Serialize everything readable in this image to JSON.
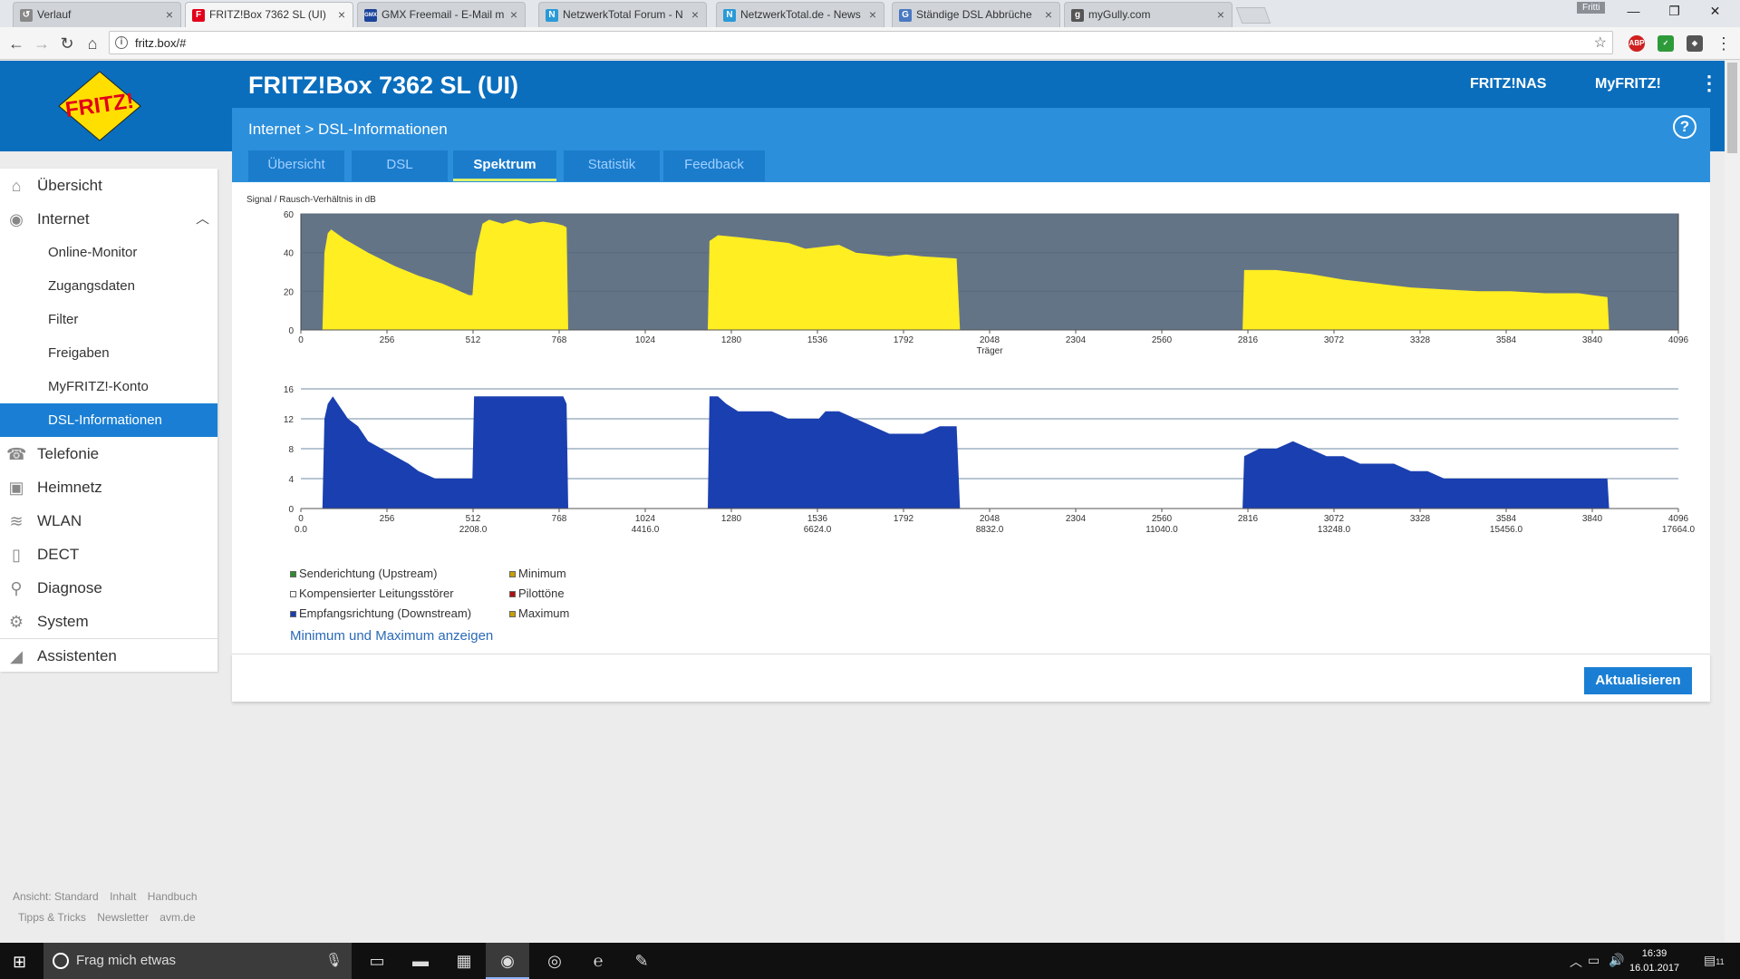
{
  "browser": {
    "tabs": [
      {
        "title": "Verlauf",
        "favicon": "history-icon",
        "color": "#888"
      },
      {
        "title": "FRITZ!Box 7362 SL (UI)",
        "favicon": "fritz-icon",
        "color": "#e2001a"
      },
      {
        "title": "GMX Freemail - E-Mail m",
        "favicon": "gmx-icon",
        "color": "#1c449b"
      },
      {
        "title": "NetzwerkTotal Forum - N",
        "favicon": "nt-icon",
        "color": "#2a9ad7"
      },
      {
        "title": "NetzwerkTotal.de - News",
        "favicon": "nt-icon",
        "color": "#2a9ad7"
      },
      {
        "title": "Ständige DSL Abbrüche",
        "favicon": "g-icon",
        "color": "#4a78c2"
      },
      {
        "title": "myGully.com",
        "favicon": "gully-icon",
        "color": "#555"
      }
    ],
    "url": "fritz.box/#",
    "user": "Fritti"
  },
  "header": {
    "title": "FRITZ!Box 7362 SL (UI)",
    "links": [
      "FRITZ!NAS",
      "MyFRITZ!"
    ]
  },
  "breadcrumb": "Internet > DSL-Informationen",
  "tabs": [
    {
      "label": "Übersicht",
      "active": false
    },
    {
      "label": "DSL",
      "active": false
    },
    {
      "label": "Spektrum",
      "active": true
    },
    {
      "label": "Statistik",
      "active": false
    },
    {
      "label": "Feedback",
      "active": false
    }
  ],
  "sidebar": {
    "items": [
      {
        "label": "Übersicht",
        "icon": "home-icon"
      },
      {
        "label": "Internet",
        "icon": "globe-icon"
      },
      {
        "label": "Telefonie",
        "icon": "phone-icon"
      },
      {
        "label": "Heimnetz",
        "icon": "network-icon"
      },
      {
        "label": "WLAN",
        "icon": "wifi-icon"
      },
      {
        "label": "DECT",
        "icon": "dect-icon"
      },
      {
        "label": "Diagnose",
        "icon": "diagnose-icon"
      },
      {
        "label": "System",
        "icon": "system-icon"
      },
      {
        "label": "Assistenten",
        "icon": "wizard-icon"
      }
    ],
    "subitems": [
      "Online-Monitor",
      "Zugangsdaten",
      "Filter",
      "Freigaben",
      "MyFRITZ!-Konto",
      "DSL-Informationen"
    ]
  },
  "footer_links": {
    "row1": [
      "Ansicht: Standard",
      "Inhalt",
      "Handbuch"
    ],
    "row2": [
      "Tipps & Tricks",
      "Newsletter",
      "avm.de"
    ]
  },
  "legend": {
    "items": [
      {
        "label": "Senderichtung (Upstream)",
        "color": "#2e8b2e"
      },
      {
        "label": "Minimum",
        "color": "#c8a000"
      },
      {
        "label": "Kompensierter Leitungsstörer",
        "color": "#ffffff"
      },
      {
        "label": "Pilottöne",
        "color": "#b01010"
      },
      {
        "label": "Empfangsrichtung (Downstream)",
        "color": "#1a3fb0"
      },
      {
        "label": "Maximum",
        "color": "#c8a000"
      }
    ],
    "toggle_link": "Minimum und Maximum anzeigen"
  },
  "refresh_button": "Aktualisieren",
  "taskbar": {
    "search_placeholder": "Frag mich etwas",
    "time": "16:39",
    "date": "16.01.2017",
    "notification_count": "11"
  },
  "chart_data": [
    {
      "type": "area",
      "title": "Signal / Rausch-Verhältnis in dB",
      "xlabel": "Träger",
      "ylabel": "",
      "xlim": [
        0,
        4096
      ],
      "ylim": [
        0,
        60
      ],
      "x_ticks": [
        0,
        256,
        512,
        768,
        1024,
        1280,
        1536,
        1792,
        2048,
        2304,
        2560,
        2816,
        3072,
        3328,
        3584,
        3840,
        4096
      ],
      "y_ticks": [
        0,
        20,
        40,
        60
      ],
      "color": "#ffee22",
      "background": "#647487",
      "series": [
        {
          "points": [
            [
              64,
              0
            ],
            [
              70,
              40
            ],
            [
              80,
              50
            ],
            [
              90,
              52
            ],
            [
              130,
              47
            ],
            [
              200,
              40
            ],
            [
              280,
              33
            ],
            [
              350,
              28
            ],
            [
              420,
              24
            ],
            [
              500,
              18
            ],
            [
              510,
              18
            ],
            [
              520,
              40
            ],
            [
              540,
              55
            ],
            [
              560,
              57
            ],
            [
              600,
              55
            ],
            [
              640,
              57
            ],
            [
              680,
              55
            ],
            [
              720,
              56
            ],
            [
              760,
              55
            ],
            [
              780,
              54
            ],
            [
              790,
              53
            ],
            [
              795,
              0
            ]
          ]
        },
        {
          "points": [
            [
              1210,
              0
            ],
            [
              1215,
              46
            ],
            [
              1240,
              49
            ],
            [
              1300,
              48
            ],
            [
              1350,
              47
            ],
            [
              1400,
              46
            ],
            [
              1450,
              45
            ],
            [
              1500,
              42
            ],
            [
              1550,
              43
            ],
            [
              1600,
              44
            ],
            [
              1650,
              40
            ],
            [
              1700,
              39
            ],
            [
              1750,
              38
            ],
            [
              1800,
              39
            ],
            [
              1850,
              38
            ],
            [
              1950,
              37
            ],
            [
              1960,
              0
            ]
          ]
        },
        {
          "points": [
            [
              2800,
              0
            ],
            [
              2805,
              31
            ],
            [
              2900,
              31
            ],
            [
              3000,
              29
            ],
            [
              3100,
              26
            ],
            [
              3200,
              24
            ],
            [
              3300,
              22
            ],
            [
              3400,
              21
            ],
            [
              3500,
              20
            ],
            [
              3600,
              20
            ],
            [
              3700,
              19
            ],
            [
              3800,
              19
            ],
            [
              3840,
              18
            ],
            [
              3885,
              17
            ],
            [
              3890,
              0
            ]
          ]
        }
      ]
    },
    {
      "type": "area",
      "title": "",
      "xlabel": "",
      "ylabel": "",
      "xlim": [
        0,
        4096
      ],
      "ylim": [
        0,
        16
      ],
      "x_ticks": [
        0,
        256,
        512,
        768,
        1024,
        1280,
        1536,
        1792,
        2048,
        2304,
        2560,
        2816,
        3072,
        3328,
        3584,
        3840,
        4096
      ],
      "x_ticks_khz": [
        "0.0",
        "2208.0",
        "4416.0",
        "6624.0",
        "8832.0",
        "11040.0",
        "13248.0",
        "15456.0",
        "17664.0"
      ],
      "y_ticks": [
        0,
        4,
        8,
        12,
        16
      ],
      "color": "#1a3fb0",
      "background": "#ffffff",
      "series": [
        {
          "points": [
            [
              64,
              0
            ],
            [
              70,
              12
            ],
            [
              80,
              14
            ],
            [
              95,
              15
            ],
            [
              110,
              14
            ],
            [
              140,
              12
            ],
            [
              170,
              11
            ],
            [
              200,
              9
            ],
            [
              240,
              8
            ],
            [
              280,
              7
            ],
            [
              320,
              6
            ],
            [
              350,
              5
            ],
            [
              400,
              4
            ],
            [
              450,
              4
            ],
            [
              500,
              4
            ],
            [
              505,
              4
            ],
            [
              510,
              4
            ],
            [
              515,
              15
            ],
            [
              600,
              15
            ],
            [
              700,
              15
            ],
            [
              780,
              15
            ],
            [
              790,
              14
            ],
            [
              795,
              0
            ]
          ]
        },
        {
          "points": [
            [
              1210,
              0
            ],
            [
              1215,
              15
            ],
            [
              1240,
              15
            ],
            [
              1265,
              14
            ],
            [
              1300,
              13
            ],
            [
              1350,
              13
            ],
            [
              1400,
              13
            ],
            [
              1450,
              12
            ],
            [
              1500,
              12
            ],
            [
              1540,
              12
            ],
            [
              1560,
              13
            ],
            [
              1600,
              13
            ],
            [
              1650,
              12
            ],
            [
              1700,
              11
            ],
            [
              1750,
              10
            ],
            [
              1800,
              10
            ],
            [
              1850,
              10
            ],
            [
              1900,
              11
            ],
            [
              1950,
              11
            ],
            [
              1960,
              0
            ]
          ]
        },
        {
          "points": [
            [
              2800,
              0
            ],
            [
              2805,
              7
            ],
            [
              2850,
              8
            ],
            [
              2900,
              8
            ],
            [
              2950,
              9
            ],
            [
              3000,
              8
            ],
            [
              3050,
              7
            ],
            [
              3100,
              7
            ],
            [
              3150,
              6
            ],
            [
              3200,
              6
            ],
            [
              3250,
              6
            ],
            [
              3300,
              5
            ],
            [
              3350,
              5
            ],
            [
              3400,
              4
            ],
            [
              3500,
              4
            ],
            [
              3600,
              4
            ],
            [
              3700,
              4
            ],
            [
              3800,
              4
            ],
            [
              3885,
              4
            ],
            [
              3890,
              0
            ]
          ]
        }
      ]
    }
  ]
}
